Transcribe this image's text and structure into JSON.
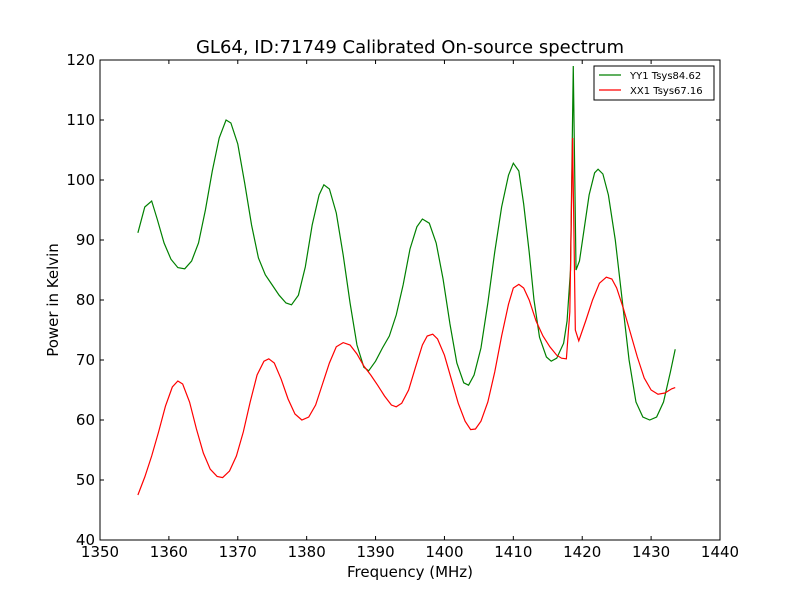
{
  "chart_data": {
    "type": "line",
    "title": "GL64, ID:71749 Calibrated On-source spectrum",
    "xlabel": "Frequency (MHz)",
    "ylabel": "Power in Kelvin",
    "xlim": [
      1350,
      1440
    ],
    "ylim": [
      40,
      120
    ],
    "xticks": [
      "1350",
      "1360",
      "1370",
      "1380",
      "1390",
      "1400",
      "1410",
      "1420",
      "1430",
      "1440"
    ],
    "yticks": [
      "40",
      "50",
      "60",
      "70",
      "80",
      "90",
      "100",
      "110",
      "120"
    ],
    "grid": false,
    "legend_position": "top-right",
    "series": [
      {
        "name": "YY1 Tsys84.62",
        "color": "#008000",
        "points": [
          [
            1355.5,
            91.2
          ],
          [
            1356.5,
            95.5
          ],
          [
            1357.5,
            96.5
          ],
          [
            1358.3,
            93.5
          ],
          [
            1359.3,
            89.5
          ],
          [
            1360.3,
            86.8
          ],
          [
            1361.3,
            85.4
          ],
          [
            1362.3,
            85.2
          ],
          [
            1363.3,
            86.5
          ],
          [
            1364.3,
            89.5
          ],
          [
            1365.3,
            95.0
          ],
          [
            1366.3,
            101.5
          ],
          [
            1367.3,
            107.0
          ],
          [
            1368.3,
            110.0
          ],
          [
            1369.0,
            109.5
          ],
          [
            1370.0,
            106.0
          ],
          [
            1371.0,
            99.5
          ],
          [
            1372.0,
            92.5
          ],
          [
            1373.0,
            87.0
          ],
          [
            1374.0,
            84.2
          ],
          [
            1375.0,
            82.5
          ],
          [
            1376.0,
            80.8
          ],
          [
            1377.0,
            79.5
          ],
          [
            1377.8,
            79.2
          ],
          [
            1378.8,
            80.8
          ],
          [
            1379.8,
            85.5
          ],
          [
            1380.8,
            92.5
          ],
          [
            1381.8,
            97.5
          ],
          [
            1382.5,
            99.2
          ],
          [
            1383.3,
            98.5
          ],
          [
            1384.3,
            94.5
          ],
          [
            1385.3,
            87.5
          ],
          [
            1386.3,
            79.5
          ],
          [
            1387.3,
            72.5
          ],
          [
            1388.3,
            68.8
          ],
          [
            1389.0,
            68.2
          ],
          [
            1390.0,
            69.8
          ],
          [
            1391.0,
            72.0
          ],
          [
            1392.0,
            74.0
          ],
          [
            1393.0,
            77.5
          ],
          [
            1394.0,
            82.5
          ],
          [
            1395.0,
            88.5
          ],
          [
            1396.0,
            92.2
          ],
          [
            1396.8,
            93.5
          ],
          [
            1397.8,
            92.8
          ],
          [
            1398.8,
            89.5
          ],
          [
            1399.8,
            83.5
          ],
          [
            1400.8,
            76.0
          ],
          [
            1401.8,
            69.5
          ],
          [
            1402.8,
            66.2
          ],
          [
            1403.5,
            65.8
          ],
          [
            1404.3,
            67.5
          ],
          [
            1405.3,
            72.0
          ],
          [
            1406.3,
            79.5
          ],
          [
            1407.3,
            88.0
          ],
          [
            1408.3,
            95.5
          ],
          [
            1409.3,
            100.8
          ],
          [
            1410.0,
            102.8
          ],
          [
            1410.8,
            101.5
          ],
          [
            1411.5,
            96.0
          ],
          [
            1412.3,
            88.0
          ],
          [
            1413.0,
            80.0
          ],
          [
            1413.8,
            73.8
          ],
          [
            1414.8,
            70.5
          ],
          [
            1415.5,
            69.8
          ],
          [
            1416.3,
            70.3
          ],
          [
            1417.3,
            72.8
          ],
          [
            1417.8,
            76.5
          ],
          [
            1418.3,
            85.0
          ],
          [
            1418.7,
            119.0
          ],
          [
            1419.1,
            85.0
          ],
          [
            1419.6,
            86.5
          ],
          [
            1420.3,
            92.0
          ],
          [
            1421.0,
            97.5
          ],
          [
            1421.8,
            101.2
          ],
          [
            1422.3,
            101.8
          ],
          [
            1423.0,
            101.0
          ],
          [
            1423.8,
            97.5
          ],
          [
            1424.8,
            90.0
          ],
          [
            1425.8,
            80.0
          ],
          [
            1426.8,
            70.0
          ],
          [
            1427.8,
            63.0
          ],
          [
            1428.8,
            60.5
          ],
          [
            1429.8,
            60.0
          ],
          [
            1430.8,
            60.5
          ],
          [
            1431.8,
            63.0
          ],
          [
            1432.8,
            68.0
          ],
          [
            1433.5,
            71.8
          ]
        ]
      },
      {
        "name": "XX1 Tsys67.16",
        "color": "#ff0000",
        "points": [
          [
            1355.5,
            47.5
          ],
          [
            1356.5,
            50.5
          ],
          [
            1357.5,
            54.0
          ],
          [
            1358.5,
            58.0
          ],
          [
            1359.5,
            62.3
          ],
          [
            1360.5,
            65.5
          ],
          [
            1361.3,
            66.5
          ],
          [
            1362.0,
            66.0
          ],
          [
            1363.0,
            63.0
          ],
          [
            1364.0,
            58.5
          ],
          [
            1365.0,
            54.5
          ],
          [
            1366.0,
            51.8
          ],
          [
            1367.0,
            50.6
          ],
          [
            1367.8,
            50.4
          ],
          [
            1368.8,
            51.5
          ],
          [
            1369.8,
            54.0
          ],
          [
            1370.8,
            58.0
          ],
          [
            1371.8,
            63.0
          ],
          [
            1372.8,
            67.5
          ],
          [
            1373.8,
            69.8
          ],
          [
            1374.5,
            70.2
          ],
          [
            1375.3,
            69.5
          ],
          [
            1376.3,
            66.8
          ],
          [
            1377.3,
            63.5
          ],
          [
            1378.3,
            61.0
          ],
          [
            1379.3,
            60.0
          ],
          [
            1380.3,
            60.5
          ],
          [
            1381.3,
            62.5
          ],
          [
            1382.3,
            66.0
          ],
          [
            1383.3,
            69.5
          ],
          [
            1384.3,
            72.2
          ],
          [
            1385.3,
            72.9
          ],
          [
            1386.3,
            72.5
          ],
          [
            1387.3,
            71.0
          ],
          [
            1388.3,
            69.0
          ],
          [
            1389.3,
            67.5
          ],
          [
            1390.3,
            65.8
          ],
          [
            1391.3,
            64.0
          ],
          [
            1392.3,
            62.5
          ],
          [
            1393.0,
            62.2
          ],
          [
            1393.8,
            62.8
          ],
          [
            1394.8,
            65.0
          ],
          [
            1395.8,
            68.8
          ],
          [
            1396.8,
            72.5
          ],
          [
            1397.5,
            74.0
          ],
          [
            1398.3,
            74.3
          ],
          [
            1399.0,
            73.5
          ],
          [
            1400.0,
            70.8
          ],
          [
            1401.0,
            66.8
          ],
          [
            1402.0,
            62.8
          ],
          [
            1403.0,
            59.8
          ],
          [
            1403.8,
            58.4
          ],
          [
            1404.5,
            58.5
          ],
          [
            1405.3,
            59.8
          ],
          [
            1406.3,
            63.0
          ],
          [
            1407.3,
            68.0
          ],
          [
            1408.3,
            74.0
          ],
          [
            1409.3,
            79.3
          ],
          [
            1410.0,
            82.0
          ],
          [
            1410.8,
            82.6
          ],
          [
            1411.5,
            82.0
          ],
          [
            1412.3,
            80.0
          ],
          [
            1413.3,
            76.5
          ],
          [
            1414.3,
            74.0
          ],
          [
            1415.3,
            72.2
          ],
          [
            1416.3,
            70.8
          ],
          [
            1417.0,
            70.3
          ],
          [
            1417.7,
            70.2
          ],
          [
            1418.2,
            78.0
          ],
          [
            1418.6,
            107.0
          ],
          [
            1419.0,
            75.0
          ],
          [
            1419.5,
            73.2
          ],
          [
            1420.5,
            76.5
          ],
          [
            1421.5,
            80.0
          ],
          [
            1422.5,
            82.8
          ],
          [
            1423.5,
            83.8
          ],
          [
            1424.3,
            83.5
          ],
          [
            1425.0,
            82.0
          ],
          [
            1426.0,
            78.5
          ],
          [
            1427.0,
            74.5
          ],
          [
            1428.0,
            70.5
          ],
          [
            1429.0,
            67.0
          ],
          [
            1430.0,
            65.0
          ],
          [
            1431.0,
            64.3
          ],
          [
            1432.0,
            64.5
          ],
          [
            1433.0,
            65.2
          ],
          [
            1433.5,
            65.4
          ]
        ]
      }
    ]
  }
}
